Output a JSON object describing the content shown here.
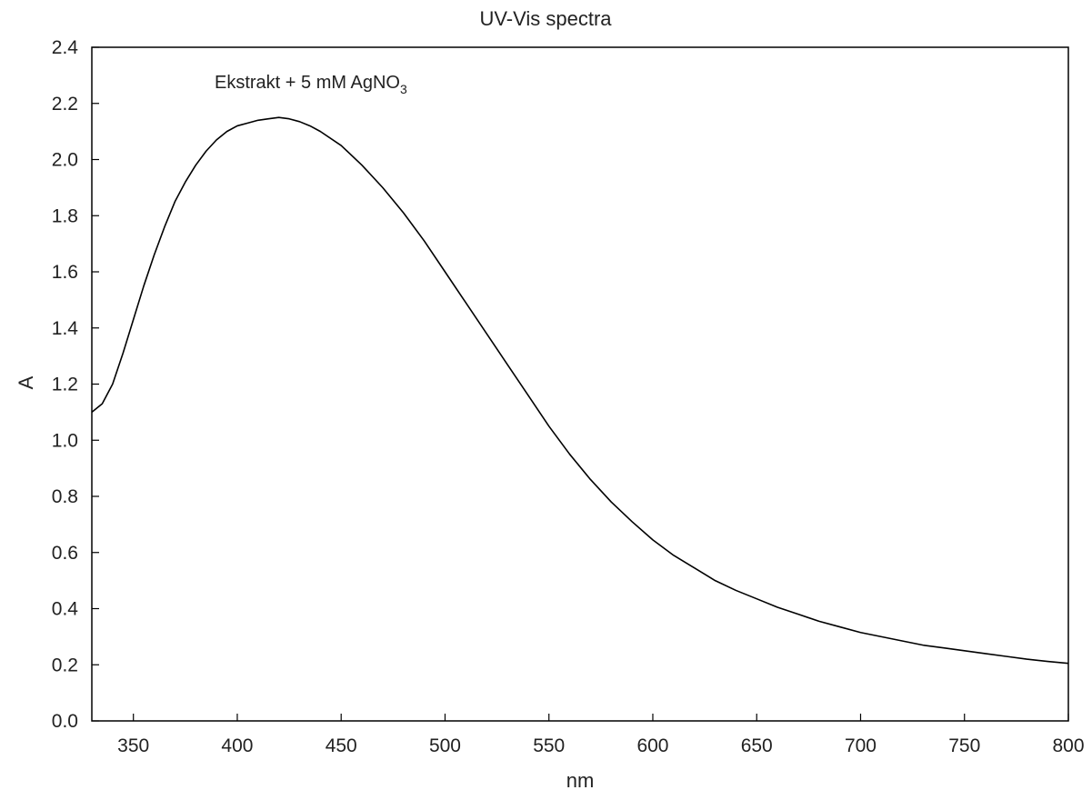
{
  "chart_data": {
    "type": "line",
    "title": "UV-Vis spectra",
    "xlabel": "nm",
    "ylabel": "A",
    "xlim": [
      330,
      800
    ],
    "ylim": [
      0.0,
      2.4
    ],
    "x_ticks": [
      350,
      400,
      450,
      500,
      550,
      600,
      650,
      700,
      750,
      800
    ],
    "x_tick_labels": [
      "350",
      "400",
      "450",
      "500",
      "550",
      "600",
      "650",
      "700",
      "750",
      "800"
    ],
    "y_ticks": [
      0.0,
      0.2,
      0.4,
      0.6,
      0.8,
      1.0,
      1.2,
      1.4,
      1.6,
      1.8,
      2.0,
      2.2,
      2.4
    ],
    "y_tick_labels": [
      "0.0",
      "0.2",
      "0.4",
      "0.6",
      "0.8",
      "1.0",
      "1.2",
      "1.4",
      "1.6",
      "1.8",
      "2.0",
      "2.2",
      "2.4"
    ],
    "grid": false,
    "annotation": {
      "text": "Ekstrakt + 5 mM AgNO",
      "subscript": "3"
    },
    "series": [
      {
        "color": "#000000",
        "x": [
          330,
          335,
          340,
          345,
          350,
          355,
          360,
          365,
          370,
          375,
          380,
          385,
          390,
          395,
          400,
          405,
          410,
          415,
          420,
          425,
          430,
          435,
          440,
          450,
          460,
          470,
          480,
          490,
          500,
          510,
          520,
          530,
          540,
          550,
          560,
          570,
          580,
          590,
          600,
          610,
          620,
          630,
          640,
          650,
          660,
          670,
          680,
          690,
          700,
          710,
          720,
          730,
          740,
          750,
          760,
          770,
          780,
          790,
          800
        ],
        "y": [
          1.1,
          1.13,
          1.2,
          1.31,
          1.43,
          1.55,
          1.66,
          1.76,
          1.85,
          1.92,
          1.98,
          2.03,
          2.07,
          2.1,
          2.12,
          2.13,
          2.14,
          2.145,
          2.15,
          2.145,
          2.135,
          2.12,
          2.1,
          2.05,
          1.98,
          1.9,
          1.81,
          1.71,
          1.6,
          1.49,
          1.38,
          1.27,
          1.16,
          1.05,
          0.95,
          0.86,
          0.78,
          0.71,
          0.645,
          0.59,
          0.545,
          0.5,
          0.465,
          0.435,
          0.405,
          0.38,
          0.355,
          0.335,
          0.315,
          0.3,
          0.285,
          0.27,
          0.26,
          0.25,
          0.24,
          0.23,
          0.22,
          0.212,
          0.205
        ]
      }
    ]
  }
}
